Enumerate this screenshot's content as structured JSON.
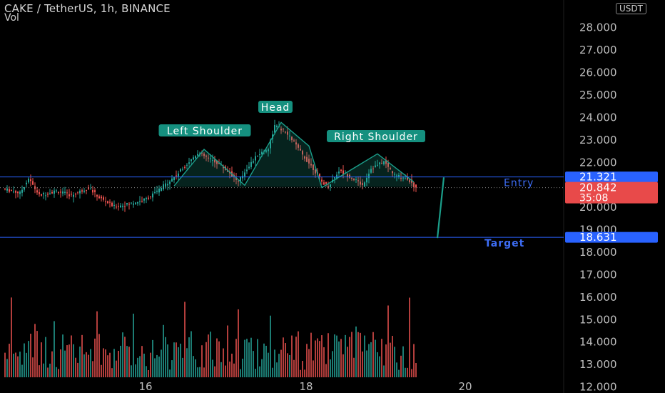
{
  "header": {
    "title": "CAKE / TetherUS, 1h, BINANCE",
    "indicator": "Vol",
    "currency_badge": "USDT"
  },
  "colors": {
    "bg": "#000000",
    "up": "#26a69a",
    "down": "#ef5350",
    "level_line": "#2962ff",
    "pattern": "#1b9e8a",
    "label_bg": "#15907f",
    "entry_text": "#3d6df5",
    "price_tag": "#e84a4a",
    "axis_text": "#bdbdbd"
  },
  "chart_data": {
    "type": "candlestick",
    "symbol": "CAKE / TetherUS",
    "interval": "1h",
    "exchange": "BINANCE",
    "y_axis_ticks": [
      "28.000",
      "27.000",
      "26.000",
      "25.000",
      "24.000",
      "23.000",
      "22.000",
      "21.000",
      "20.000",
      "19.000",
      "18.000",
      "17.000",
      "16.000",
      "15.000",
      "14.000",
      "13.000",
      "12.000"
    ],
    "y_ticks_values": [
      28,
      27,
      26,
      25,
      24,
      23,
      22,
      21,
      20,
      19,
      18,
      17,
      16,
      15,
      14,
      13,
      12
    ],
    "price_range": [
      11.7,
      29.2
    ],
    "x_axis_labels": [
      "16",
      "18",
      "20"
    ],
    "levels": {
      "entry": {
        "label": "Entry",
        "value": 21.321,
        "value_label": "21.321"
      },
      "target": {
        "label": "Target",
        "value": 18.631,
        "value_label": "18.631"
      }
    },
    "last_price": {
      "value": 20.842,
      "label": "20.842",
      "countdown": "35:08"
    },
    "pattern_labels": {
      "left_shoulder": "Left Shoulder",
      "head": "Head",
      "right_shoulder": "Right Shoulder"
    },
    "pattern_points": [
      {
        "t": 80,
        "p": 20.92
      },
      {
        "t": 94,
        "p": 22.55
      },
      {
        "t": 113,
        "p": 20.95
      },
      {
        "t": 130,
        "p": 23.75
      },
      {
        "t": 143,
        "p": 22.7
      },
      {
        "t": 149,
        "p": 20.85
      },
      {
        "t": 175,
        "p": 22.35
      },
      {
        "t": 192,
        "p": 21.1
      }
    ],
    "projection": {
      "from_t": 206,
      "from_p": 21.3,
      "to_t": 203,
      "to_p": 18.6
    },
    "candle_keypoints": [
      [
        0,
        20.8
      ],
      [
        8,
        20.6
      ],
      [
        12,
        21.25
      ],
      [
        17,
        20.5
      ],
      [
        25,
        20.7
      ],
      [
        32,
        20.5
      ],
      [
        40,
        20.85
      ],
      [
        45,
        20.4
      ],
      [
        52,
        20.0
      ],
      [
        58,
        20.1
      ],
      [
        66,
        20.3
      ],
      [
        71,
        20.6
      ],
      [
        76,
        21.0
      ],
      [
        81,
        21.4
      ],
      [
        86,
        21.9
      ],
      [
        91,
        22.4
      ],
      [
        95,
        22.2
      ],
      [
        101,
        21.9
      ],
      [
        106,
        21.5
      ],
      [
        110,
        21.1
      ],
      [
        114,
        21.7
      ],
      [
        119,
        22.3
      ],
      [
        124,
        22.6
      ],
      [
        127,
        23.6
      ],
      [
        131,
        23.4
      ],
      [
        135,
        23.0
      ],
      [
        140,
        22.3
      ],
      [
        145,
        21.7
      ],
      [
        149,
        21.1
      ],
      [
        152,
        20.9
      ],
      [
        157,
        21.6
      ],
      [
        163,
        21.3
      ],
      [
        168,
        20.95
      ],
      [
        172,
        21.7
      ],
      [
        178,
        22.0
      ],
      [
        183,
        21.4
      ],
      [
        189,
        21.25
      ],
      [
        193,
        20.8
      ]
    ],
    "volume_scale_max": 23
  }
}
